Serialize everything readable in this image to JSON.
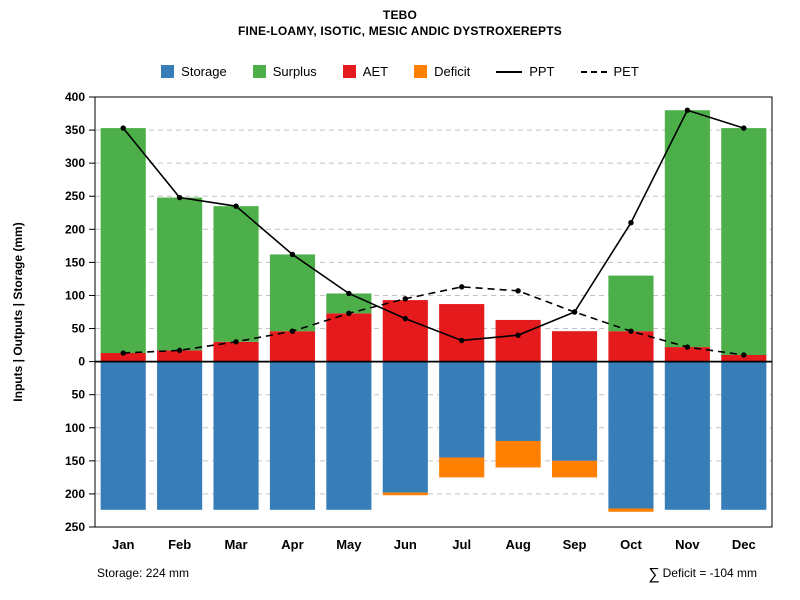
{
  "header": {
    "title": "TEBO",
    "subtitle": "FINE-LOAMY, ISOTIC, MESIC ANDIC DYSTROXEREPTS"
  },
  "legend": {
    "items": [
      {
        "label": "Storage",
        "color": "#377eb8",
        "kind": "box"
      },
      {
        "label": "Surplus",
        "color": "#4daf4a",
        "kind": "box"
      },
      {
        "label": "AET",
        "color": "#e41a1c",
        "kind": "box"
      },
      {
        "label": "Deficit",
        "color": "#ff7f00",
        "kind": "box"
      },
      {
        "label": "PPT",
        "color": "#000000",
        "kind": "line"
      },
      {
        "label": "PET",
        "color": "#000000",
        "kind": "dashed-line"
      }
    ]
  },
  "footer": {
    "storage_note": "Storage: 224 mm",
    "sigma": "∑",
    "deficit_note": "Deficit = -104 mm"
  },
  "chart_data": {
    "type": "bar",
    "title": "TEBO",
    "subtitle": "FINE-LOAMY, ISOTIC, MESIC ANDIC DYSTROXEREPTS",
    "ylabel": "Inputs | Outputs | Storage  (mm)",
    "categories": [
      "Jan",
      "Feb",
      "Mar",
      "Apr",
      "May",
      "Jun",
      "Jul",
      "Aug",
      "Sep",
      "Oct",
      "Nov",
      "Dec"
    ],
    "y_axis": {
      "upper_max": 400,
      "lower_max": 250,
      "step": 50,
      "ticks_upper": [
        "400",
        "350",
        "300",
        "250",
        "200",
        "150",
        "100",
        "50",
        "0"
      ],
      "ticks_lower": [
        "50",
        "100",
        "150",
        "200",
        "250"
      ]
    },
    "grid": true,
    "legend_position": "top",
    "series": [
      {
        "name": "Storage",
        "type": "bar",
        "direction": "down",
        "color": "#377eb8",
        "values": [
          224,
          224,
          224,
          224,
          224,
          198,
          145,
          120,
          150,
          222,
          224,
          224
        ]
      },
      {
        "name": "Surplus",
        "type": "bar",
        "direction": "up",
        "stack_on": "AET",
        "color": "#4daf4a",
        "values": [
          340,
          231,
          205,
          116,
          30,
          0,
          0,
          0,
          0,
          84,
          358,
          343
        ]
      },
      {
        "name": "AET",
        "type": "bar",
        "direction": "up",
        "color": "#e41a1c",
        "values": [
          13,
          17,
          30,
          46,
          73,
          93,
          87,
          63,
          46,
          46,
          22,
          10
        ]
      },
      {
        "name": "Deficit",
        "type": "bar",
        "direction": "down",
        "stack_on": "Storage",
        "color": "#ff7f00",
        "values": [
          0,
          0,
          0,
          0,
          0,
          4,
          30,
          40,
          25,
          5,
          0,
          0
        ]
      },
      {
        "name": "PPT",
        "type": "line",
        "dash": false,
        "color": "#000000",
        "values": [
          353,
          248,
          235,
          162,
          103,
          65,
          32,
          40,
          75,
          210,
          380,
          353
        ]
      },
      {
        "name": "PET",
        "type": "line",
        "dash": true,
        "color": "#000000",
        "values": [
          13,
          17,
          30,
          46,
          73,
          95,
          113,
          107,
          75,
          46,
          22,
          10
        ]
      }
    ],
    "annotations": {
      "storage_total_mm": 224,
      "deficit_sum_mm": -104
    }
  }
}
